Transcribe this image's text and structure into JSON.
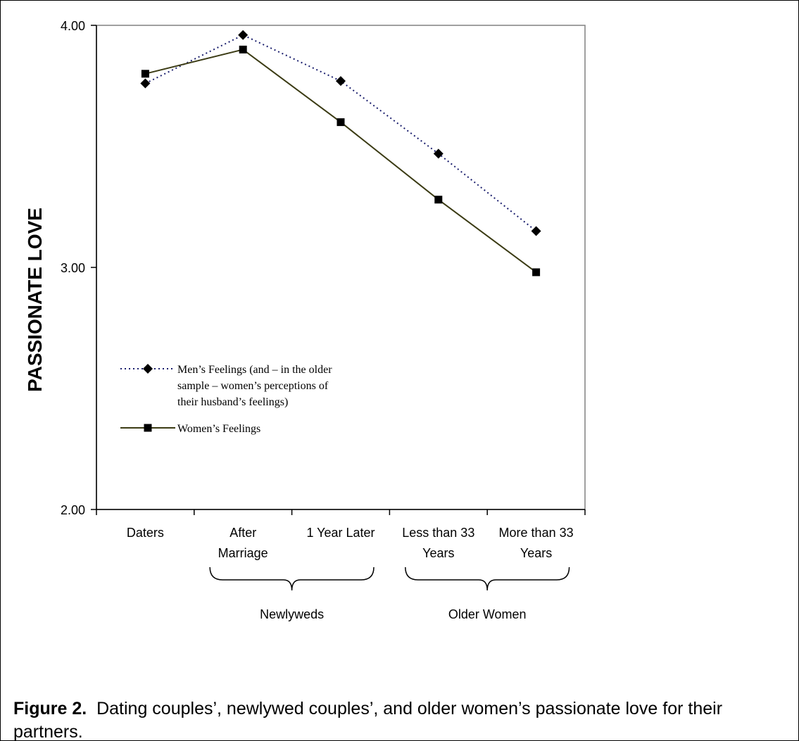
{
  "chart_data": {
    "type": "line",
    "ylabel": "PASSIONATE LOVE",
    "xlabel": "",
    "ylim": [
      2.0,
      4.0
    ],
    "yticks": [
      "2.00",
      "3.00",
      "4.00"
    ],
    "categories": [
      [
        "Daters"
      ],
      [
        "After",
        "Marriage"
      ],
      [
        "1 Year Later"
      ],
      [
        "Less than 33",
        "Years"
      ],
      [
        "More than 33",
        "Years"
      ]
    ],
    "groups": [
      {
        "label": "Newlyweds",
        "from": 1,
        "to": 2
      },
      {
        "label": "Older Women",
        "from": 3,
        "to": 4
      }
    ],
    "series": [
      {
        "name": "Men’s Feelings (and – in the older sample – women’s perceptions of their husband’s feelings)",
        "legend_lines": [
          "Men’s Feelings (and – in the older",
          "sample – women’s perceptions of",
          "their husband’s feelings)"
        ],
        "marker": "diamond",
        "line_style": "dotted",
        "color": "#1b1f6e",
        "values": [
          3.76,
          3.96,
          3.77,
          3.47,
          3.15
        ]
      },
      {
        "name": "Women’s Feelings",
        "legend_lines": [
          "Women’s Feelings"
        ],
        "marker": "square",
        "line_style": "solid",
        "color": "#3b3b14",
        "values": [
          3.8,
          3.9,
          3.6,
          3.28,
          2.98
        ]
      }
    ],
    "grid": false,
    "legend_position": "inside-left"
  },
  "caption": {
    "label": "Figure 2.",
    "text": "Dating couples’, newlywed couples’, and older women’s passionate love for their partners."
  }
}
